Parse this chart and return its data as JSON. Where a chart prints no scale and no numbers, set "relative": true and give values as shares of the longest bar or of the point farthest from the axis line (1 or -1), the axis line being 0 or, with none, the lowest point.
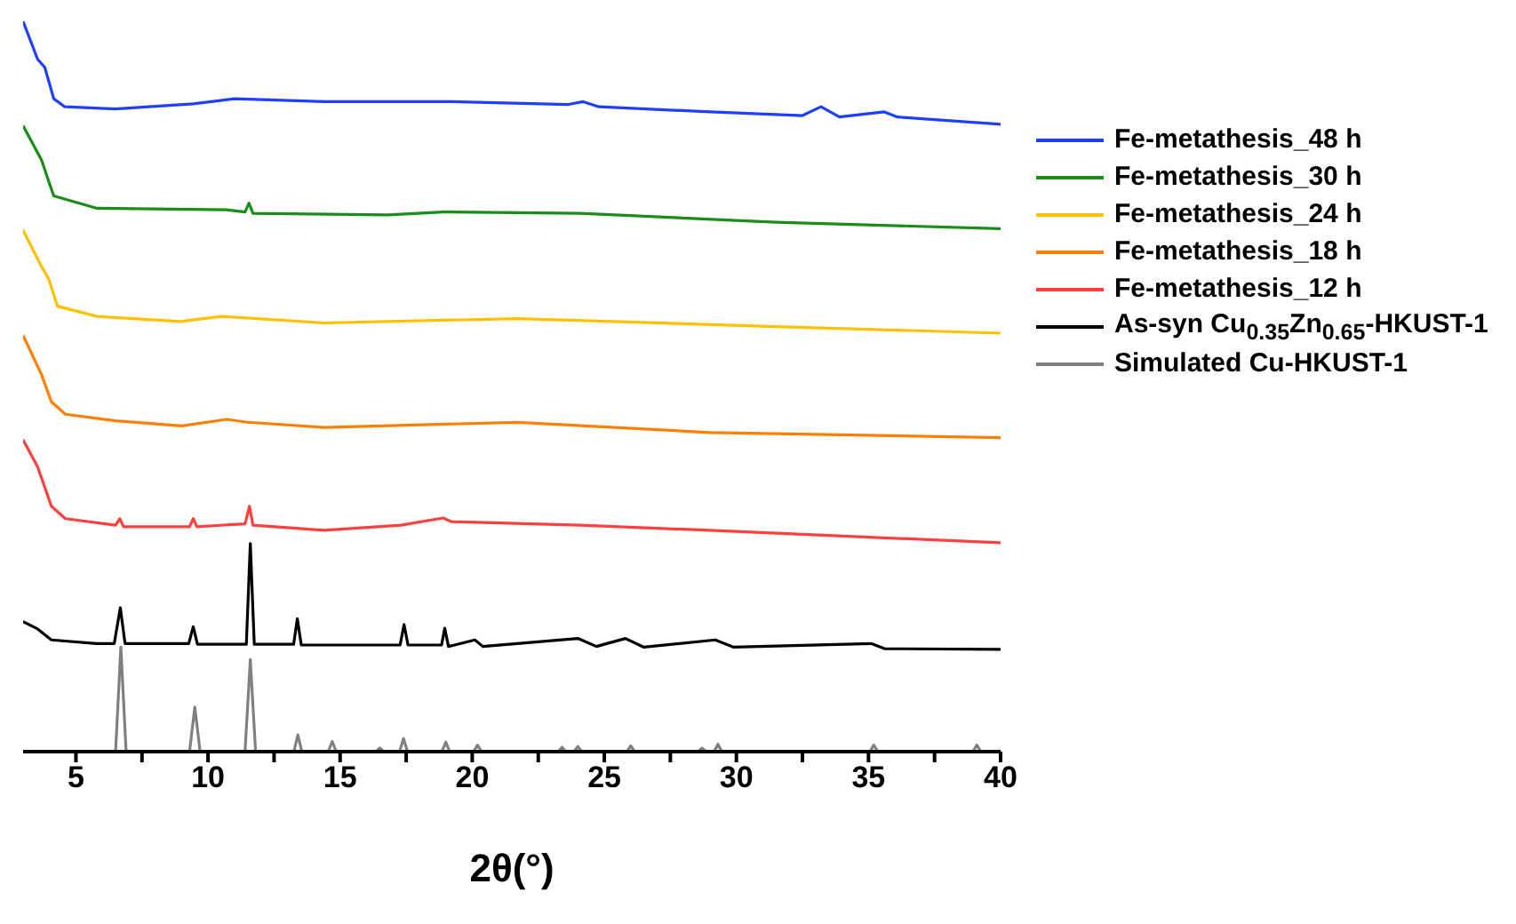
{
  "chart_data": {
    "type": "line",
    "relative": true,
    "xlabel": "2θ(°)",
    "xlim": [
      3,
      40
    ],
    "xticks": [
      5,
      {
        "value": 7.5,
        "label": null
      },
      10,
      {
        "value": 12.5,
        "label": null
      },
      15,
      {
        "value": 17.5,
        "label": null
      },
      20,
      {
        "value": 22.5,
        "label": null
      },
      25,
      {
        "value": 27.5,
        "label": null
      },
      30,
      {
        "value": 32.5,
        "label": null
      },
      35,
      {
        "value": 37.5,
        "label": null
      },
      40
    ],
    "grid": false,
    "legend": "right",
    "marker": "none",
    "line_style": "solid",
    "series": [
      {
        "name": "Fe-metathesis_48 h",
        "color": "#1f3fff",
        "x": [
          3,
          3.55,
          3.82,
          4.16,
          4.58,
          6.49,
          9.44,
          11.0,
          14.4,
          19.2,
          23.6,
          24.2,
          24.8,
          29.0,
          32.5,
          33.2,
          33.9,
          35.6,
          36.1,
          40
        ],
        "values": [
          1.0,
          0.948,
          0.937,
          0.894,
          0.883,
          0.88,
          0.887,
          0.894,
          0.89,
          0.89,
          0.886,
          0.89,
          0.883,
          0.876,
          0.871,
          0.883,
          0.869,
          0.876,
          0.869,
          0.859
        ]
      },
      {
        "name": "Fe-metathesis_30 h",
        "color": "#1a8c1a",
        "x": [
          3,
          3.7,
          3.96,
          4.16,
          5.8,
          10.7,
          11.4,
          11.55,
          11.7,
          16.8,
          18.9,
          24.1,
          31.5,
          40
        ],
        "values": [
          0.857,
          0.81,
          0.782,
          0.761,
          0.744,
          0.742,
          0.739,
          0.751,
          0.737,
          0.735,
          0.739,
          0.737,
          0.725,
          0.716
        ]
      },
      {
        "name": "Fe-metathesis_24 h",
        "color": "#ffc000",
        "x": [
          3,
          3.7,
          3.96,
          4.3,
          5.8,
          8.96,
          10.5,
          14.4,
          21.7,
          31.5,
          40
        ],
        "values": [
          0.714,
          0.664,
          0.648,
          0.61,
          0.596,
          0.589,
          0.596,
          0.587,
          0.593,
          0.582,
          0.573
        ]
      },
      {
        "name": "Fe-metathesis_18 h",
        "color": "#ff8000",
        "x": [
          3,
          3.7,
          4.07,
          4.6,
          6.5,
          9.0,
          10.7,
          11.5,
          14.4,
          21.7,
          29.0,
          40
        ],
        "values": [
          0.57,
          0.516,
          0.479,
          0.462,
          0.453,
          0.446,
          0.455,
          0.451,
          0.444,
          0.451,
          0.437,
          0.43
        ]
      },
      {
        "name": "Fe-metathesis_12 h",
        "color": "#ff4040",
        "x": [
          3,
          3.55,
          4.07,
          4.6,
          6.5,
          6.66,
          6.8,
          9.3,
          9.44,
          9.58,
          11.4,
          11.57,
          11.7,
          14.4,
          17.3,
          18.9,
          19.2,
          24.1,
          29.0,
          40
        ],
        "values": [
          0.427,
          0.39,
          0.336,
          0.319,
          0.31,
          0.319,
          0.308,
          0.308,
          0.319,
          0.308,
          0.312,
          0.336,
          0.31,
          0.303,
          0.31,
          0.32,
          0.315,
          0.31,
          0.303,
          0.286
        ]
      },
      {
        "name": "As-syn Cu$_{0.35}$Zn$_{0.65}$-HKUST-1",
        "color": "#000000",
        "x": [
          3,
          3.55,
          4.07,
          5.78,
          6.45,
          6.68,
          6.86,
          9.27,
          9.44,
          9.6,
          11.45,
          11.6,
          11.75,
          13.24,
          13.38,
          13.53,
          17.27,
          17.42,
          17.57,
          18.84,
          18.96,
          19.1,
          20.1,
          20.4,
          24.0,
          24.7,
          25.8,
          26.5,
          29.2,
          29.9,
          35.1,
          35.6,
          40
        ],
        "values": [
          0.178,
          0.168,
          0.153,
          0.148,
          0.148,
          0.197,
          0.148,
          0.148,
          0.171,
          0.147,
          0.147,
          0.285,
          0.147,
          0.147,
          0.182,
          0.146,
          0.146,
          0.174,
          0.146,
          0.146,
          0.169,
          0.144,
          0.153,
          0.144,
          0.155,
          0.144,
          0.155,
          0.143,
          0.153,
          0.143,
          0.148,
          0.141,
          0.14
        ]
      },
      {
        "name": "Simulated Cu-HKUST-1",
        "color": "#808080",
        "x": [
          3,
          6.5,
          6.7,
          6.9,
          9.3,
          9.5,
          9.7,
          11.4,
          11.6,
          11.8,
          13.25,
          13.4,
          13.55,
          14.55,
          14.7,
          14.85,
          16.35,
          16.5,
          16.65,
          17.25,
          17.4,
          17.55,
          18.85,
          19.0,
          19.15,
          20.05,
          20.2,
          20.35,
          23.25,
          23.4,
          23.55,
          23.85,
          24.0,
          24.15,
          25.85,
          26.0,
          26.15,
          28.55,
          28.7,
          28.85,
          29.15,
          29.3,
          29.45,
          35.05,
          35.2,
          35.35,
          38.95,
          39.1,
          39.25,
          40
        ],
        "values": [
          0,
          0,
          0.143,
          0,
          0,
          0.061,
          0,
          0,
          0.126,
          0,
          0,
          0.023,
          0,
          0,
          0.014,
          0,
          0,
          0.005,
          0,
          0,
          0.018,
          0,
          0,
          0.013,
          0,
          0,
          0.009,
          0,
          0,
          0.006,
          0,
          0,
          0.007,
          0,
          0,
          0.008,
          0,
          0,
          0.005,
          0,
          0,
          0.01,
          0,
          0,
          0.009,
          0,
          0,
          0.009,
          0,
          0
        ]
      }
    ]
  }
}
